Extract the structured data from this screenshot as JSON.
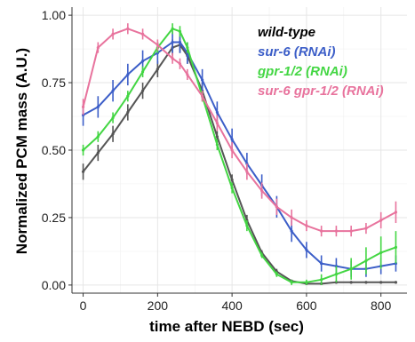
{
  "chart_data": {
    "type": "line",
    "xlabel": "time after NEBD (sec)",
    "ylabel": "Normalized PCM mass (A.U.)",
    "xlim": [
      -30,
      870
    ],
    "ylim": [
      -0.03,
      1.03
    ],
    "x_ticks": [
      0,
      200,
      400,
      600,
      800
    ],
    "x_tick_labels": [
      "0",
      "200",
      "400",
      "600",
      "800"
    ],
    "y_ticks": [
      0.0,
      0.25,
      0.5,
      0.75,
      1.0
    ],
    "y_tick_labels": [
      "0.00",
      "0.25",
      "0.50",
      "0.75",
      "1.00"
    ],
    "grid": true,
    "legend_position": "top-right",
    "error_bars": true,
    "series": [
      {
        "name": "wild-type",
        "color": "#555555",
        "x": [
          0,
          40,
          80,
          120,
          160,
          200,
          240,
          260,
          280,
          320,
          360,
          400,
          440,
          480,
          520,
          560,
          600,
          640,
          680,
          720,
          760,
          800,
          840
        ],
        "values": [
          0.42,
          0.49,
          0.56,
          0.64,
          0.72,
          0.8,
          0.88,
          0.89,
          0.85,
          0.72,
          0.55,
          0.39,
          0.24,
          0.12,
          0.05,
          0.015,
          0.005,
          0.005,
          0.01,
          0.01,
          0.01,
          0.01,
          0.01
        ],
        "errors": [
          0.03,
          0.03,
          0.03,
          0.03,
          0.03,
          0.03,
          0.03,
          0.03,
          0.03,
          0.03,
          0.02,
          0.02,
          0.02,
          0.01,
          0.01,
          0.005,
          0.005,
          0.005,
          0.005,
          0.005,
          0.005,
          0.005,
          0.005
        ]
      },
      {
        "name": "sur-6 (RNAi)",
        "color": "#3c5ec8",
        "x": [
          0,
          40,
          80,
          120,
          160,
          200,
          240,
          260,
          280,
          320,
          360,
          400,
          440,
          480,
          520,
          560,
          600,
          640,
          680,
          720,
          760,
          800,
          840
        ],
        "values": [
          0.63,
          0.66,
          0.72,
          0.78,
          0.83,
          0.86,
          0.9,
          0.9,
          0.86,
          0.76,
          0.64,
          0.54,
          0.45,
          0.37,
          0.29,
          0.2,
          0.13,
          0.08,
          0.07,
          0.06,
          0.06,
          0.07,
          0.08
        ],
        "errors": [
          0.04,
          0.04,
          0.04,
          0.04,
          0.04,
          0.04,
          0.04,
          0.04,
          0.04,
          0.04,
          0.04,
          0.04,
          0.04,
          0.04,
          0.04,
          0.04,
          0.03,
          0.03,
          0.03,
          0.03,
          0.03,
          0.03,
          0.03
        ]
      },
      {
        "name": "gpr-1/2 (RNAi)",
        "color": "#43d643",
        "x": [
          0,
          40,
          80,
          120,
          160,
          200,
          240,
          260,
          280,
          320,
          360,
          400,
          440,
          480,
          520,
          560,
          600,
          640,
          680,
          720,
          760,
          800,
          840
        ],
        "values": [
          0.5,
          0.55,
          0.62,
          0.7,
          0.79,
          0.88,
          0.95,
          0.94,
          0.88,
          0.7,
          0.52,
          0.36,
          0.22,
          0.11,
          0.04,
          0.01,
          0.01,
          0.02,
          0.04,
          0.06,
          0.09,
          0.12,
          0.14
        ],
        "errors": [
          0.02,
          0.02,
          0.02,
          0.02,
          0.02,
          0.02,
          0.02,
          0.02,
          0.02,
          0.02,
          0.02,
          0.02,
          0.02,
          0.01,
          0.01,
          0.01,
          0.01,
          0.02,
          0.03,
          0.04,
          0.05,
          0.06,
          0.06
        ]
      },
      {
        "name": "sur-6 gpr-1/2 (RNAi)",
        "color": "#e8739d",
        "x": [
          0,
          40,
          80,
          120,
          160,
          200,
          240,
          260,
          280,
          320,
          360,
          400,
          440,
          480,
          520,
          560,
          600,
          640,
          680,
          720,
          760,
          800,
          840
        ],
        "values": [
          0.66,
          0.88,
          0.93,
          0.95,
          0.93,
          0.89,
          0.84,
          0.82,
          0.78,
          0.7,
          0.6,
          0.5,
          0.42,
          0.35,
          0.29,
          0.25,
          0.22,
          0.2,
          0.2,
          0.2,
          0.21,
          0.24,
          0.27
        ],
        "errors": [
          0.03,
          0.02,
          0.02,
          0.02,
          0.02,
          0.02,
          0.02,
          0.02,
          0.02,
          0.02,
          0.03,
          0.03,
          0.03,
          0.03,
          0.03,
          0.03,
          0.02,
          0.02,
          0.02,
          0.02,
          0.02,
          0.03,
          0.04
        ]
      }
    ]
  }
}
